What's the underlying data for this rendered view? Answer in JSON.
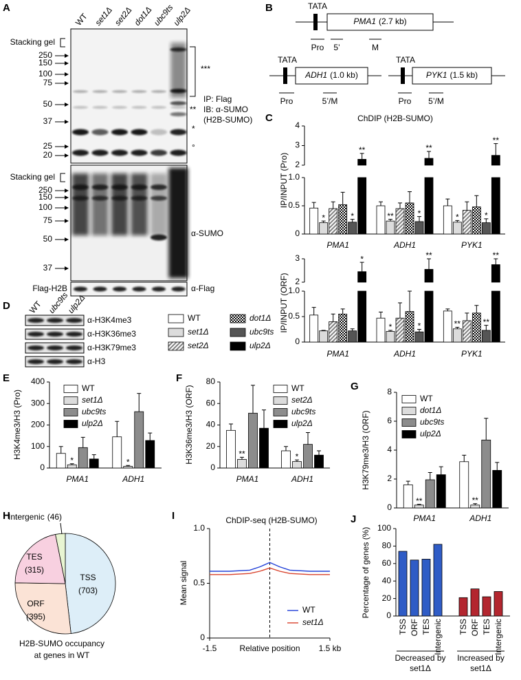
{
  "panel_letters": [
    "A",
    "B",
    "C",
    "D",
    "E",
    "F",
    "G",
    "H",
    "I",
    "J"
  ],
  "panel_a": {
    "lanes": [
      "WT",
      "set1Δ",
      "set2Δ",
      "dot1Δ",
      "ubc9ts",
      "ulp2Δ"
    ],
    "top_blot": {
      "stacking": "Stacking gel",
      "markers": [
        250,
        150,
        100,
        75,
        50,
        37,
        25,
        20
      ],
      "annotations": [
        "***",
        "**",
        "*",
        "°"
      ],
      "label": [
        "IP: Flag",
        "IB: α-SUMO",
        "(H2B-SUMO)"
      ]
    },
    "bottom_blot": {
      "stacking": "Stacking gel",
      "markers": [
        250,
        150,
        100,
        75,
        50,
        37
      ],
      "label": "α-SUMO"
    },
    "strip": {
      "left": "Flag-H2B",
      "right": "α-Flag"
    }
  },
  "panel_b": {
    "genes": [
      {
        "tata": "TATA",
        "name": "PMA1",
        "size": "(2.7 kb)",
        "regions": [
          "Pro",
          "5’",
          "M"
        ]
      },
      {
        "tata": "TATA",
        "name": "ADH1",
        "size": "(1.0 kb)",
        "regions": [
          "Pro",
          "5’/M"
        ]
      },
      {
        "tata": "TATA",
        "name": "PYK1",
        "size": "(1.5 kb)",
        "regions": [
          "Pro",
          "5’/M"
        ]
      }
    ]
  },
  "panel_d": {
    "lanes": [
      "WT",
      "ubc9ts",
      "ulp2Δ"
    ],
    "antibodies": [
      "α-H3K4me3",
      "α-H3K36me3",
      "α-H3K79me3",
      "α-H3"
    ]
  },
  "chart_data": [
    {
      "type": "bar",
      "title": "ChDIP (H2B-SUMO)",
      "ylabel": "IP/INPUT (Pro)",
      "categories": [
        "PMA1",
        "ADH1",
        "PYK1"
      ],
      "ylim": [
        0,
        4
      ],
      "axis_break": [
        1,
        2
      ],
      "yticks": [
        0,
        0.5,
        {
          "value": 1,
          "label": "1.0"
        },
        2,
        3,
        4
      ],
      "series": [
        {
          "name": "WT",
          "color": "#ffffff",
          "values": [
            0.46,
            0.5,
            0.5
          ],
          "errors": [
            0.1,
            0.07,
            0.12
          ]
        },
        {
          "name": "set1Δ",
          "color": "#dcdcdc",
          "values": [
            0.2,
            0.23,
            0.21
          ],
          "errors": [
            0.03,
            0.03,
            0.03
          ],
          "annotations": [
            "*",
            "**",
            "*"
          ]
        },
        {
          "name": "set2Δ",
          "color": "#808080",
          "pattern": "hatch",
          "values": [
            0.45,
            0.45,
            0.42
          ],
          "errors": [
            0.12,
            0.1,
            0.15
          ]
        },
        {
          "name": "dot1Δ",
          "color": "#000000",
          "pattern": "checker",
          "values": [
            0.52,
            0.55,
            0.48
          ],
          "errors": [
            0.22,
            0.2,
            0.2
          ]
        },
        {
          "name": "ubc9ts",
          "color": "#555555",
          "values": [
            0.21,
            0.22,
            0.2
          ],
          "errors": [
            0.05,
            0.09,
            0.07
          ],
          "annotations": [
            "*",
            "*",
            "*"
          ]
        },
        {
          "name": "ulp2Δ",
          "color": "#000000",
          "values": [
            2.3,
            2.35,
            2.5
          ],
          "errors": [
            0.3,
            0.35,
            0.6
          ],
          "annotations": [
            "**",
            "**",
            "**"
          ]
        }
      ]
    },
    {
      "type": "bar",
      "ylabel": "IP/INPUT (ORF)",
      "categories": [
        "PMA1",
        "ADH1",
        "PYK1"
      ],
      "ylim": [
        0,
        3
      ],
      "axis_break": [
        1,
        2
      ],
      "yticks": [
        0,
        0.5,
        {
          "value": 1,
          "label": "1.0"
        },
        2,
        3
      ],
      "series": [
        {
          "color": "#ffffff",
          "values": [
            0.53,
            0.47,
            0.61
          ],
          "errors": [
            0.15,
            0.12,
            0.04
          ]
        },
        {
          "color": "#dcdcdc",
          "values": [
            0.22,
            0.21,
            0.26
          ],
          "errors": [
            0.01,
            0.02,
            0.03
          ],
          "annotations": [
            null,
            "*",
            "**"
          ]
        },
        {
          "color": "#808080",
          "pattern": "hatch",
          "values": [
            0.4,
            0.47,
            0.42
          ],
          "errors": [
            0.15,
            0.3,
            0.15
          ]
        },
        {
          "color": "#000000",
          "pattern": "checker",
          "values": [
            0.55,
            0.6,
            0.57
          ],
          "errors": [
            0.1,
            0.4,
            0.15
          ]
        },
        {
          "color": "#555555",
          "values": [
            0.22,
            0.2,
            0.23
          ],
          "errors": [
            0.04,
            0.05,
            0.1
          ],
          "annotations": [
            null,
            "*",
            "**"
          ]
        },
        {
          "color": "#000000",
          "values": [
            2.45,
            2.55,
            2.75
          ],
          "errors": [
            0.4,
            0.45,
            0.25
          ],
          "annotations": [
            "*",
            "**",
            "**"
          ]
        }
      ]
    },
    {
      "type": "bar",
      "ylabel": "H3K4me3/H3 (Pro)",
      "categories": [
        "PMA1",
        "ADH1"
      ],
      "ylim": [
        0,
        400
      ],
      "yticks": [
        0,
        100,
        200,
        300,
        400
      ],
      "series": [
        {
          "name": "WT",
          "color": "#ffffff",
          "values": [
            68,
            145
          ],
          "errors": [
            32,
            72
          ]
        },
        {
          "name": "set1Δ",
          "color": "#dcdcdc",
          "values": [
            15,
            8
          ],
          "errors": [
            5,
            4
          ],
          "annotations": [
            "*",
            "*"
          ]
        },
        {
          "name": "ubc9ts",
          "color": "#8c8c8c",
          "values": [
            95,
            262
          ],
          "errors": [
            48,
            85
          ]
        },
        {
          "name": "ulp2Δ",
          "color": "#000000",
          "values": [
            42,
            128
          ],
          "errors": [
            20,
            35
          ]
        }
      ]
    },
    {
      "type": "bar",
      "ylabel": "H3K36me3/H3 (ORF)",
      "categories": [
        "PMA1",
        "ADH1"
      ],
      "ylim": [
        0,
        80
      ],
      "yticks": [
        0,
        20,
        40,
        60,
        80
      ],
      "series": [
        {
          "name": "WT",
          "color": "#ffffff",
          "values": [
            35,
            16
          ],
          "errors": [
            6,
            4
          ]
        },
        {
          "name": "set2Δ",
          "color": "#dcdcdc",
          "values": [
            8,
            6
          ],
          "errors": [
            2,
            1.5
          ],
          "annotations": [
            "**",
            "*"
          ]
        },
        {
          "name": "ubc9ts",
          "color": "#8c8c8c",
          "values": [
            51,
            22
          ],
          "errors": [
            26,
            11
          ]
        },
        {
          "name": "ulp2Δ",
          "color": "#000000",
          "values": [
            37,
            12
          ],
          "errors": [
            17,
            4
          ]
        }
      ]
    },
    {
      "type": "bar",
      "ylabel": "H3K79me3/H3 (ORF)",
      "categories": [
        "PMA1",
        "ADH1"
      ],
      "ylim": [
        0,
        8
      ],
      "yticks": [
        0,
        2,
        4,
        6,
        8
      ],
      "series": [
        {
          "name": "WT",
          "color": "#ffffff",
          "values": [
            1.6,
            3.2
          ],
          "errors": [
            0.25,
            0.45
          ]
        },
        {
          "name": "dot1Δ",
          "color": "#dcdcdc",
          "values": [
            0.2,
            0.2
          ],
          "errors": [
            0.05,
            0.1
          ],
          "annotations": [
            "**",
            "**"
          ]
        },
        {
          "name": "ubc9ts",
          "color": "#8c8c8c",
          "values": [
            1.95,
            4.7
          ],
          "errors": [
            0.5,
            1.5
          ]
        },
        {
          "name": "ulp2Δ",
          "color": "#000000",
          "values": [
            2.3,
            2.6
          ],
          "errors": [
            0.55,
            0.55
          ]
        }
      ]
    },
    {
      "type": "pie",
      "caption": [
        "H2B-SUMO occupancy",
        "at genes in WT"
      ],
      "categories": [
        "TSS",
        "ORF",
        "TES",
        "Intergenic"
      ],
      "values": [
        703,
        395,
        315,
        46
      ],
      "value_labels": [
        "(703)",
        "(395)",
        "(315)",
        "(46)"
      ],
      "colors": [
        "#ddeef8",
        "#fbe3d6",
        "#f8d0e0",
        "#e8f5d2"
      ]
    },
    {
      "type": "line",
      "title": "ChDIP-seq (H2B-SUMO)",
      "ylabel": "Mean signal",
      "xlabel": "Relative position",
      "xlim": [
        -1.5,
        1.5
      ],
      "ylim": [
        0,
        1
      ],
      "xticks": [
        -1.5,
        {
          "value": 1.5,
          "label": "1.5 kb"
        }
      ],
      "yticks": [
        0,
        0.5,
        {
          "value": 1,
          "label": "1.0"
        }
      ],
      "x": [
        -1.5,
        -1,
        -0.5,
        -0.25,
        0,
        0.25,
        0.5,
        1,
        1.5
      ],
      "series": [
        {
          "name": "WT",
          "color": "#2140d8",
          "values": [
            0.61,
            0.61,
            0.62,
            0.65,
            0.69,
            0.65,
            0.62,
            0.61,
            0.61
          ]
        },
        {
          "name": "set1Δ",
          "color": "#d8402a",
          "values": [
            0.58,
            0.58,
            0.59,
            0.61,
            0.64,
            0.61,
            0.59,
            0.58,
            0.58
          ]
        }
      ]
    },
    {
      "type": "bar",
      "ylabel": "Percentage of genes (%)",
      "categories": [
        "TSS",
        "ORF",
        "TES",
        "Intergenic"
      ],
      "ylim": [
        0,
        100
      ],
      "yticks": [
        0,
        20,
        40,
        60,
        80,
        100
      ],
      "series": [
        {
          "name": "Decreased by set1Δ",
          "color": "#2f5cc6",
          "values": [
            74,
            64,
            65,
            82
          ]
        },
        {
          "name": "Increased by set1Δ",
          "color": "#b3262f",
          "values": [
            21,
            31,
            22,
            28
          ]
        }
      ]
    }
  ]
}
